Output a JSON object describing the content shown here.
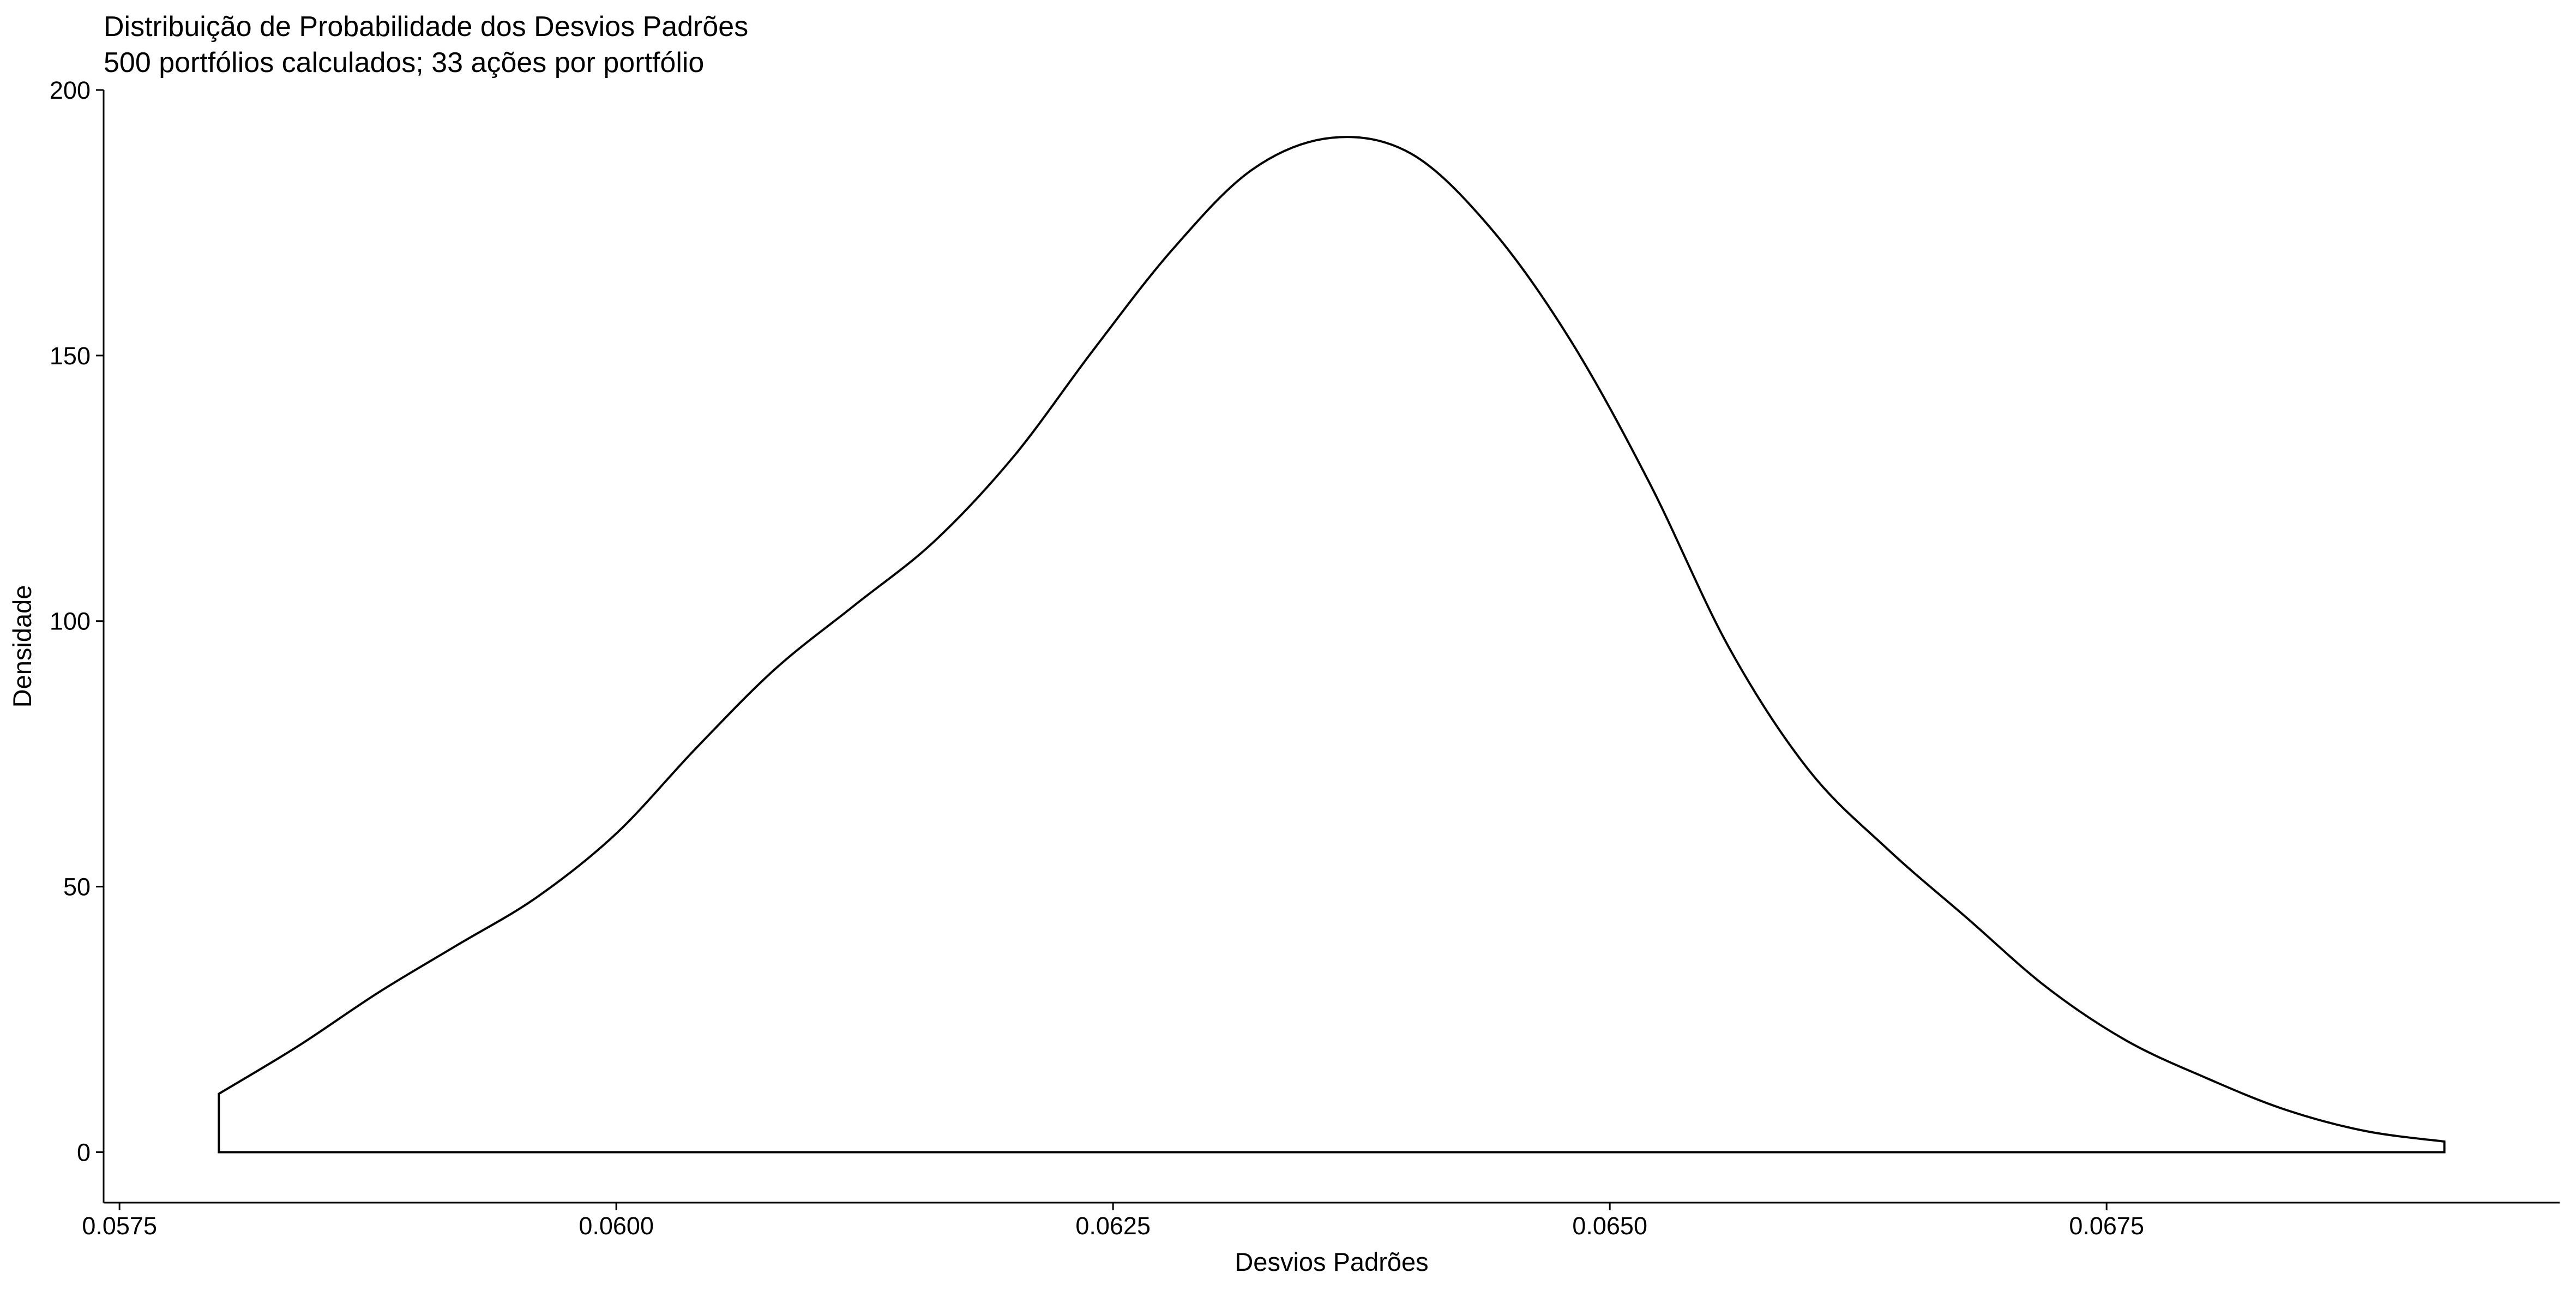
{
  "chart_data": {
    "type": "area",
    "title": "Distribuição de Probabilidade dos Desvios Padrões",
    "subtitle": "500 portfólios calculados; 33 ações por portfólio",
    "xlabel": "Desvios Padrões",
    "ylabel": "Densidade",
    "xlim": [
      0.05742,
      0.06978
    ],
    "ylim": [
      -9.5,
      200
    ],
    "x_ticks": [
      0.0575,
      0.06,
      0.0625,
      0.065,
      0.0675
    ],
    "x_tick_labels": [
      "0.0575",
      "0.0600",
      "0.0625",
      "0.0650",
      "0.0675"
    ],
    "y_ticks": [
      0,
      50,
      100,
      150,
      200
    ],
    "y_tick_labels": [
      "0",
      "50",
      "100",
      "150",
      "200"
    ],
    "grid": false,
    "legend": "none",
    "fill_color": "#ffffff",
    "line_color": "#000000",
    "series": [
      {
        "x": [
          0.058,
          0.0584,
          0.0588,
          0.0592,
          0.0596,
          0.06,
          0.0604,
          0.0608,
          0.0612,
          0.0616,
          0.062,
          0.0624,
          0.0628,
          0.0632,
          0.0636,
          0.064,
          0.0644,
          0.0648,
          0.0652,
          0.0656,
          0.066,
          0.0664,
          0.0668,
          0.0672,
          0.0676,
          0.068,
          0.0684,
          0.0688,
          0.0692
        ],
        "y": [
          11,
          20,
          30,
          39,
          48,
          60,
          76,
          91,
          103,
          115,
          131,
          151,
          170,
          185,
          191,
          188,
          174,
          153,
          126,
          95,
          72,
          57,
          44,
          31,
          21,
          14,
          8,
          4,
          2
        ]
      }
    ]
  }
}
